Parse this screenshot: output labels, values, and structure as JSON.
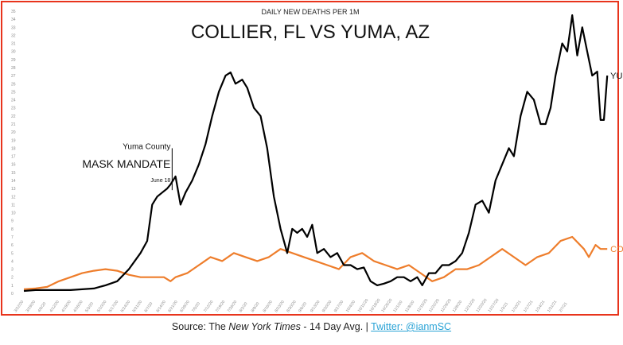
{
  "chart_data": {
    "type": "line",
    "subtitle": "DAILY NEW DEATHS PER 1M",
    "title": "COLLIER, FL VS YUMA, AZ",
    "xlabel": "",
    "ylabel": "",
    "ylim": [
      0,
      35
    ],
    "y_ticks": [
      0,
      1,
      2,
      3,
      4,
      5,
      6,
      7,
      8,
      9,
      10,
      11,
      12,
      13,
      14,
      15,
      16,
      17,
      18,
      19,
      20,
      21,
      22,
      23,
      24,
      25,
      26,
      27,
      28,
      29,
      30,
      31,
      32,
      33,
      34,
      35
    ],
    "grid": false,
    "x_tick_labels": [
      "3/22/20",
      "3/29/20",
      "4/5/20",
      "4/12/20",
      "4/19/20",
      "4/26/20",
      "5/3/20",
      "5/10/20",
      "5/17/20",
      "5/24/20",
      "5/31/20",
      "6/7/20",
      "6/14/20",
      "6/21/20",
      "6/28/20",
      "7/5/20",
      "7/12/20",
      "7/19/20",
      "7/26/20",
      "8/2/20",
      "8/9/20",
      "8/16/20",
      "8/23/20",
      "8/30/20",
      "9/6/20",
      "9/13/20",
      "9/20/20",
      "9/27/20",
      "10/4/20",
      "10/11/20",
      "10/18/20",
      "10/25/20",
      "11/1/20",
      "11/8/20",
      "11/15/20",
      "11/22/20",
      "11/29/20",
      "12/6/20",
      "12/13/20",
      "12/20/20",
      "12/27/20",
      "1/3/21",
      "1/10/21",
      "1/17/21",
      "1/24/21",
      "1/31/21",
      "2/7/21"
    ],
    "x_start": "2020-03-22",
    "x_end": "2021-02-12",
    "series": [
      {
        "name": "YUMA",
        "color": "#000000",
        "points": [
          [
            "2020-03-22",
            0.3
          ],
          [
            "2020-03-29",
            0.4
          ],
          [
            "2020-04-05",
            0.4
          ],
          [
            "2020-04-12",
            0.4
          ],
          [
            "2020-04-19",
            0.4
          ],
          [
            "2020-04-26",
            0.5
          ],
          [
            "2020-05-03",
            0.6
          ],
          [
            "2020-05-10",
            1.0
          ],
          [
            "2020-05-17",
            1.5
          ],
          [
            "2020-05-24",
            3.0
          ],
          [
            "2020-05-31",
            5.0
          ],
          [
            "2020-06-04",
            6.5
          ],
          [
            "2020-06-07",
            11.0
          ],
          [
            "2020-06-10",
            12.0
          ],
          [
            "2020-06-13",
            12.5
          ],
          [
            "2020-06-16",
            13.0
          ],
          [
            "2020-06-18",
            13.5
          ],
          [
            "2020-06-21",
            14.5
          ],
          [
            "2020-06-24",
            11.0
          ],
          [
            "2020-06-27",
            12.5
          ],
          [
            "2020-07-01",
            14.0
          ],
          [
            "2020-07-05",
            16.0
          ],
          [
            "2020-07-09",
            18.5
          ],
          [
            "2020-07-13",
            22.0
          ],
          [
            "2020-07-17",
            25.0
          ],
          [
            "2020-07-21",
            27.0
          ],
          [
            "2020-07-24",
            27.4
          ],
          [
            "2020-07-27",
            26.0
          ],
          [
            "2020-07-31",
            26.5
          ],
          [
            "2020-08-03",
            25.5
          ],
          [
            "2020-08-07",
            23.0
          ],
          [
            "2020-08-11",
            22.0
          ],
          [
            "2020-08-15",
            18.0
          ],
          [
            "2020-08-19",
            12.0
          ],
          [
            "2020-08-23",
            8.0
          ],
          [
            "2020-08-27",
            5.0
          ],
          [
            "2020-08-30",
            8.0
          ],
          [
            "2020-09-02",
            7.5
          ],
          [
            "2020-09-05",
            8.0
          ],
          [
            "2020-09-08",
            7.0
          ],
          [
            "2020-09-11",
            8.5
          ],
          [
            "2020-09-14",
            5.0
          ],
          [
            "2020-09-18",
            5.5
          ],
          [
            "2020-09-22",
            4.5
          ],
          [
            "2020-09-26",
            5.0
          ],
          [
            "2020-09-30",
            3.5
          ],
          [
            "2020-10-04",
            3.5
          ],
          [
            "2020-10-08",
            3.0
          ],
          [
            "2020-10-12",
            3.2
          ],
          [
            "2020-10-16",
            1.5
          ],
          [
            "2020-10-20",
            1.0
          ],
          [
            "2020-10-24",
            1.2
          ],
          [
            "2020-10-28",
            1.5
          ],
          [
            "2020-11-01",
            2.0
          ],
          [
            "2020-11-05",
            2.0
          ],
          [
            "2020-11-09",
            1.5
          ],
          [
            "2020-11-13",
            2.0
          ],
          [
            "2020-11-16",
            1.0
          ],
          [
            "2020-11-20",
            2.5
          ],
          [
            "2020-11-24",
            2.5
          ],
          [
            "2020-11-28",
            3.5
          ],
          [
            "2020-12-02",
            3.5
          ],
          [
            "2020-12-06",
            4.0
          ],
          [
            "2020-12-10",
            5.0
          ],
          [
            "2020-12-14",
            7.5
          ],
          [
            "2020-12-18",
            11.0
          ],
          [
            "2020-12-22",
            11.5
          ],
          [
            "2020-12-26",
            10.0
          ],
          [
            "2020-12-30",
            14.0
          ],
          [
            "2021-01-03",
            16.0
          ],
          [
            "2021-01-07",
            18.0
          ],
          [
            "2021-01-10",
            17.0
          ],
          [
            "2021-01-14",
            22.0
          ],
          [
            "2021-01-18",
            25.0
          ],
          [
            "2021-01-22",
            24.0
          ],
          [
            "2021-01-26",
            21.0
          ],
          [
            "2021-01-29",
            21.0
          ],
          [
            "2021-02-01",
            23.0
          ],
          [
            "2021-02-04",
            27.0
          ],
          [
            "2021-02-08",
            31.0
          ],
          [
            "2021-02-11",
            30.0
          ],
          [
            "2021-02-14",
            34.5
          ],
          [
            "2021-02-17",
            29.5
          ],
          [
            "2021-02-20",
            33.0
          ],
          [
            "2021-02-23",
            30.0
          ],
          [
            "2021-02-26",
            27.0
          ],
          [
            "2021-03-01",
            27.5
          ],
          [
            "2021-03-03",
            21.5
          ],
          [
            "2021-03-05",
            21.5
          ],
          [
            "2021-03-07",
            27.0
          ]
        ]
      },
      {
        "name": "COLLIER",
        "color": "#ee7d2b",
        "points": [
          [
            "2020-03-22",
            0.5
          ],
          [
            "2020-03-29",
            0.6
          ],
          [
            "2020-04-05",
            0.8
          ],
          [
            "2020-04-12",
            1.5
          ],
          [
            "2020-04-19",
            2.0
          ],
          [
            "2020-04-26",
            2.5
          ],
          [
            "2020-05-03",
            2.8
          ],
          [
            "2020-05-10",
            3.0
          ],
          [
            "2020-05-17",
            2.8
          ],
          [
            "2020-05-24",
            2.3
          ],
          [
            "2020-05-31",
            2.0
          ],
          [
            "2020-06-07",
            2.0
          ],
          [
            "2020-06-14",
            2.0
          ],
          [
            "2020-06-18",
            1.5
          ],
          [
            "2020-06-21",
            2.0
          ],
          [
            "2020-06-28",
            2.5
          ],
          [
            "2020-07-05",
            3.5
          ],
          [
            "2020-07-12",
            4.5
          ],
          [
            "2020-07-19",
            4.0
          ],
          [
            "2020-07-26",
            5.0
          ],
          [
            "2020-08-02",
            4.5
          ],
          [
            "2020-08-09",
            4.0
          ],
          [
            "2020-08-16",
            4.5
          ],
          [
            "2020-08-23",
            5.5
          ],
          [
            "2020-08-30",
            5.0
          ],
          [
            "2020-09-06",
            4.5
          ],
          [
            "2020-09-13",
            4.0
          ],
          [
            "2020-09-20",
            3.5
          ],
          [
            "2020-09-27",
            3.0
          ],
          [
            "2020-10-04",
            4.5
          ],
          [
            "2020-10-11",
            5.0
          ],
          [
            "2020-10-18",
            4.0
          ],
          [
            "2020-10-25",
            3.5
          ],
          [
            "2020-11-01",
            3.0
          ],
          [
            "2020-11-08",
            3.5
          ],
          [
            "2020-11-15",
            2.5
          ],
          [
            "2020-11-22",
            1.5
          ],
          [
            "2020-11-29",
            2.0
          ],
          [
            "2020-12-06",
            3.0
          ],
          [
            "2020-12-13",
            3.0
          ],
          [
            "2020-12-20",
            3.5
          ],
          [
            "2020-12-27",
            4.5
          ],
          [
            "2021-01-03",
            5.5
          ],
          [
            "2021-01-10",
            4.5
          ],
          [
            "2021-01-17",
            3.5
          ],
          [
            "2021-01-24",
            4.5
          ],
          [
            "2021-01-31",
            5.0
          ],
          [
            "2021-02-07",
            6.5
          ],
          [
            "2021-02-14",
            7.0
          ],
          [
            "2021-02-21",
            5.5
          ],
          [
            "2021-02-24",
            4.5
          ],
          [
            "2021-02-28",
            6.0
          ],
          [
            "2021-03-03",
            5.5
          ],
          [
            "2021-03-07",
            5.5
          ]
        ]
      }
    ],
    "annotations": {
      "mask_line1": "Yuma County",
      "mask_line2": "MASK MANDATE",
      "mask_line3": "June 18",
      "mask_date": "2020-06-18",
      "label_yuma": "YUMA",
      "label_collier": "COLLIER"
    }
  },
  "footer": {
    "source_prefix": "Source: The ",
    "source_italic": "New York Times",
    "source_suffix": " - 14 Day Avg. | ",
    "twitter_link": "Twitter: @ianmSC"
  },
  "colors": {
    "frame": "#e8341c",
    "yuma": "#000000",
    "collier": "#ee7d2b",
    "link": "#2aa3d6"
  }
}
